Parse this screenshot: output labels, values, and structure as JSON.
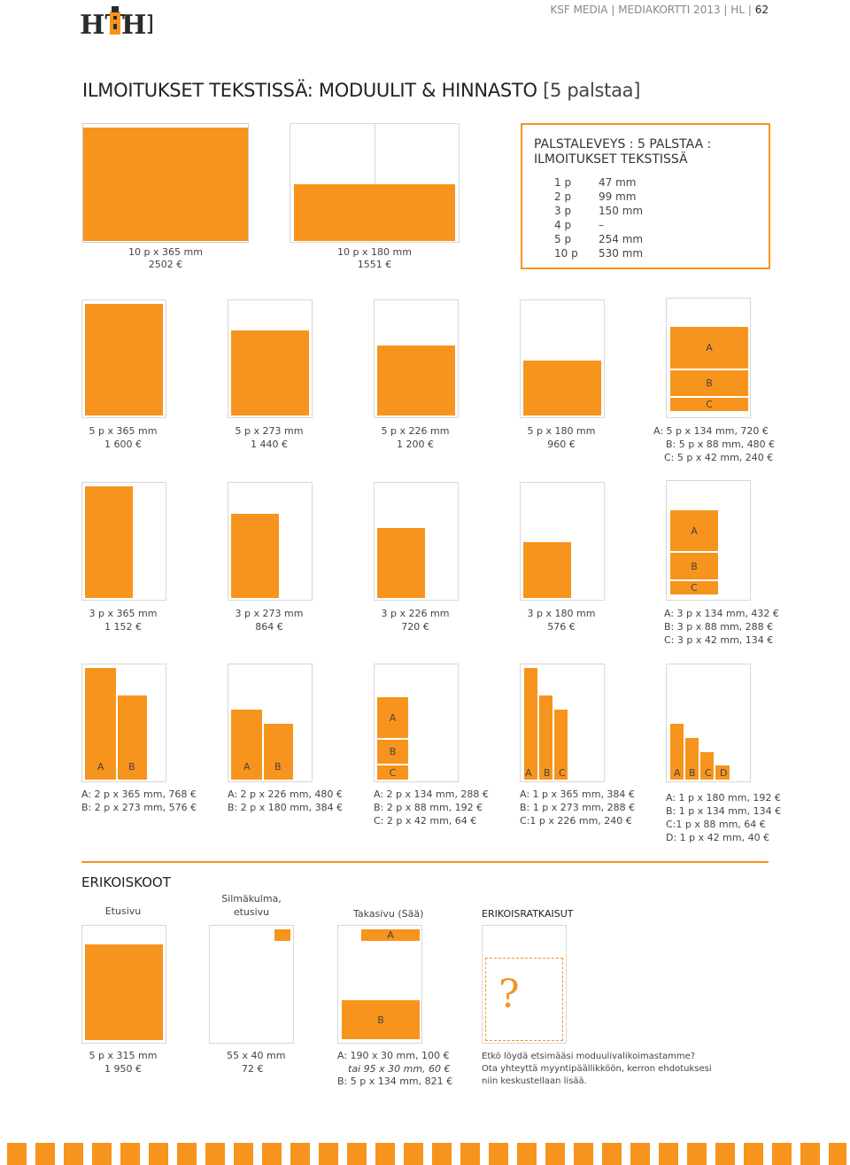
{
  "header": {
    "publisher": "KSF MEDIA",
    "sep1": "|",
    "doc": "MEDIAKORTTI 2013",
    "sep2": "|",
    "paper": "HL",
    "sep3": "|",
    "page": "62",
    "logo_text_left": "HT",
    "logo_text_right": "HL"
  },
  "title": {
    "main": "ILMOITUKSET TEKSTISSÄ: MODUULIT & HINNASTO",
    "sub": "[5 palstaa]"
  },
  "top": {
    "full": {
      "size": "10 p x 365 mm",
      "price": "2502 €"
    },
    "half": {
      "size": "10 p x 180 mm",
      "price": "1551 €"
    },
    "info": {
      "heading1": "PALSTALEVEYS : 5 PALSTAA :",
      "heading2": "ILMOITUKSET TEKSTISSÄ",
      "rows": [
        [
          "1 p",
          "47 mm"
        ],
        [
          "2 p",
          "99 mm"
        ],
        [
          "3 p",
          "150 mm"
        ],
        [
          "4 p",
          "–"
        ],
        [
          "5 p",
          "254 mm"
        ],
        [
          "10 p",
          "530 mm"
        ]
      ]
    }
  },
  "row1": {
    "items": [
      {
        "size": "5 p x 365 mm",
        "price": "1 600 €"
      },
      {
        "size": "5 p x 273 mm",
        "price": "1 440 €"
      },
      {
        "size": "5 p x 226 mm",
        "price": "1 200 €"
      },
      {
        "size": "5 p x 180 mm",
        "price": "960 €"
      }
    ],
    "abc": {
      "a": "A",
      "b": "B",
      "c": "C",
      "l1": "A: 5 p x 134 mm, 720 €",
      "l2": "B: 5 p x 88 mm, 480 €",
      "l3": "C: 5 p x 42 mm, 240 €"
    }
  },
  "row2": {
    "items": [
      {
        "size": "3 p x 365 mm",
        "price": "1 152 €"
      },
      {
        "size": "3 p x 273 mm",
        "price": "864 €"
      },
      {
        "size": "3 p x 226 mm",
        "price": "720 €"
      },
      {
        "size": "3 p x 180 mm",
        "price": "576 €"
      }
    ],
    "abc": {
      "a": "A",
      "b": "B",
      "c": "C",
      "l1": "A: 3 p x 134 mm, 432 €",
      "l2": "B: 3 p x 88 mm, 288 €",
      "l3": "C: 3 p x 42 mm, 134 €"
    }
  },
  "row3": {
    "p1": {
      "a": "A",
      "b": "B",
      "l1": "A: 2 p x 365 mm, 768 €",
      "l2": "B: 2 p x 273 mm, 576 €"
    },
    "p2": {
      "a": "A",
      "b": "B",
      "l1": "A: 2 p x 226 mm, 480 €",
      "l2": "B: 2 p x 180 mm, 384 €"
    },
    "p3": {
      "a": "A",
      "b": "B",
      "c": "C",
      "l1": "A: 2 p x 134 mm, 288 €",
      "l2": "B: 2 p x 88 mm, 192 €",
      "l3": "C: 2 p x 42 mm, 64 €"
    },
    "p4": {
      "a": "A",
      "b": "B",
      "c": "C",
      "l1": "A: 1 p x 365 mm, 384 €",
      "l2": "B: 1 p x 273 mm, 288 €",
      "l3": "C:1 p x 226 mm, 240 €"
    },
    "p5": {
      "a": "A",
      "b": "B",
      "c": "C",
      "d": "D",
      "l1": "A: 1 p x 180 mm, 192 €",
      "l2": "B: 1 p x 134 mm, 134 €",
      "l3": "C:1 p x 88 mm, 64 €",
      "l4": "D: 1 p x 42 mm, 40 €"
    }
  },
  "special": {
    "heading": "ERIKOISKOOT",
    "front": {
      "label": "Etusivu",
      "size": "5 p x 315 mm",
      "price": "1 950 €"
    },
    "eye": {
      "label1": "Silmäkulma,",
      "label2": "etusivu",
      "size": "55 x 40 mm",
      "price": "72 €"
    },
    "back": {
      "label": "Takasivu (Sää)",
      "a": "A",
      "b": "B",
      "l1": "A: 190 x 30 mm, 100 €",
      "l2": "tai 95 x 30 mm, 60 €",
      "l3": "B: 5 p x 134 mm, 821 €"
    },
    "solutions": {
      "label": "ERIKOISRATKAISUT",
      "mark": "?",
      "l1": "Etkö löydä etsimääsi moduulivalikoimastamme?",
      "l2": "Ota yhteyttä myyntipäällikköön, kerron ehdotuksesi",
      "l3": "niin keskustellaan lisää."
    }
  },
  "colors": {
    "accent": "#f7941d",
    "border": "#d8d8d8",
    "text": "#444444"
  }
}
